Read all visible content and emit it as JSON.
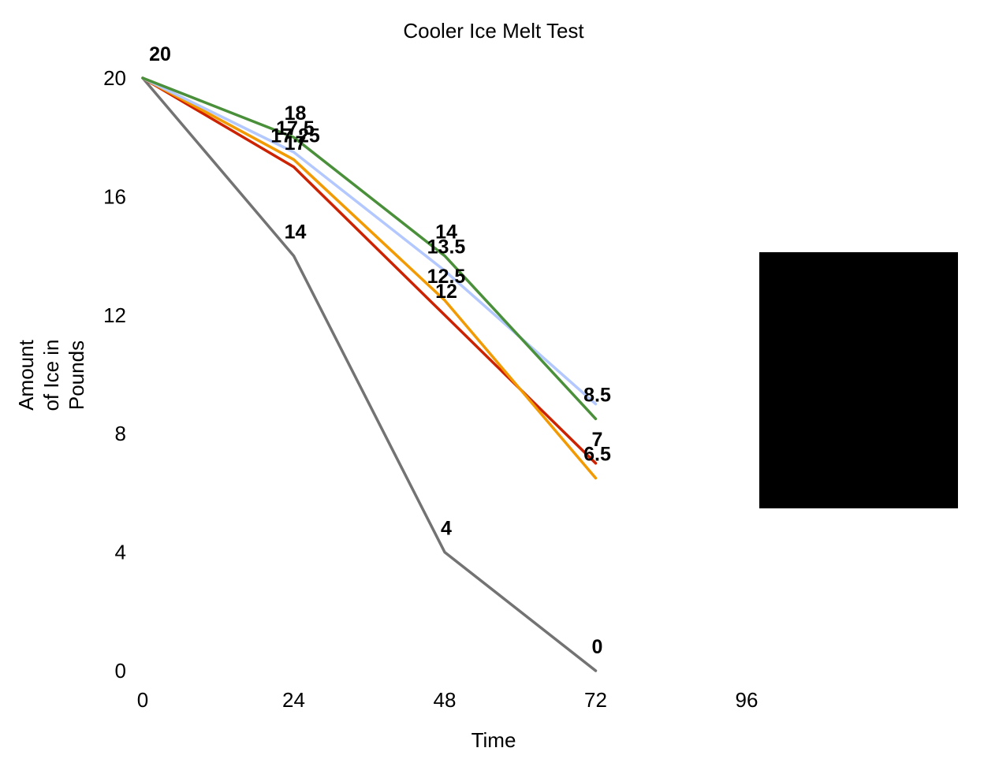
{
  "chart_data": {
    "type": "line",
    "title": "Cooler Ice Melt Test",
    "xlabel": "Time",
    "ylabel": "Amount of Ice in Pounds",
    "ylabel_lines": [
      "Amount",
      "of Ice in",
      "Pounds"
    ],
    "x": [
      0,
      24,
      48,
      72
    ],
    "xlim": [
      0,
      96
    ],
    "ylim": [
      0,
      20
    ],
    "x_ticks": [
      "0",
      "24",
      "48",
      "72",
      "96"
    ],
    "y_ticks": [
      "0",
      "4",
      "8",
      "12",
      "16",
      "20"
    ],
    "grid": false,
    "legend": "right (obscured by black box)",
    "series": [
      {
        "color": "#4a8f3a",
        "values": [
          20,
          18,
          14,
          8.5
        ]
      },
      {
        "color": "#b3c8ff",
        "values": [
          20,
          17.5,
          13.5,
          9
        ]
      },
      {
        "color": "#f29a00",
        "values": [
          20,
          17.25,
          12.5,
          6.5
        ]
      },
      {
        "color": "#cc2200",
        "values": [
          20,
          17,
          12,
          7
        ]
      },
      {
        "color": "#737373",
        "values": [
          20,
          14,
          4,
          0
        ]
      }
    ],
    "data_labels": [
      {
        "x": 0,
        "y": 20,
        "text": "20"
      },
      {
        "x": 24,
        "y": 18,
        "text": "18"
      },
      {
        "x": 24,
        "y": 17.5,
        "text": "17.5"
      },
      {
        "x": 24,
        "y": 17.25,
        "text": "17.25"
      },
      {
        "x": 24,
        "y": 17,
        "text": "17"
      },
      {
        "x": 24,
        "y": 14,
        "text": "14"
      },
      {
        "x": 48,
        "y": 14,
        "text": "14"
      },
      {
        "x": 48,
        "y": 13.5,
        "text": "13.5"
      },
      {
        "x": 48,
        "y": 12.5,
        "text": "12.5"
      },
      {
        "x": 48,
        "y": 12,
        "text": "12"
      },
      {
        "x": 48,
        "y": 4,
        "text": "4"
      },
      {
        "x": 72,
        "y": 8.5,
        "text": "8.5"
      },
      {
        "x": 72,
        "y": 7,
        "text": "7"
      },
      {
        "x": 72,
        "y": 6.5,
        "text": "6.5"
      },
      {
        "x": 72,
        "y": 0,
        "text": "0"
      }
    ]
  }
}
